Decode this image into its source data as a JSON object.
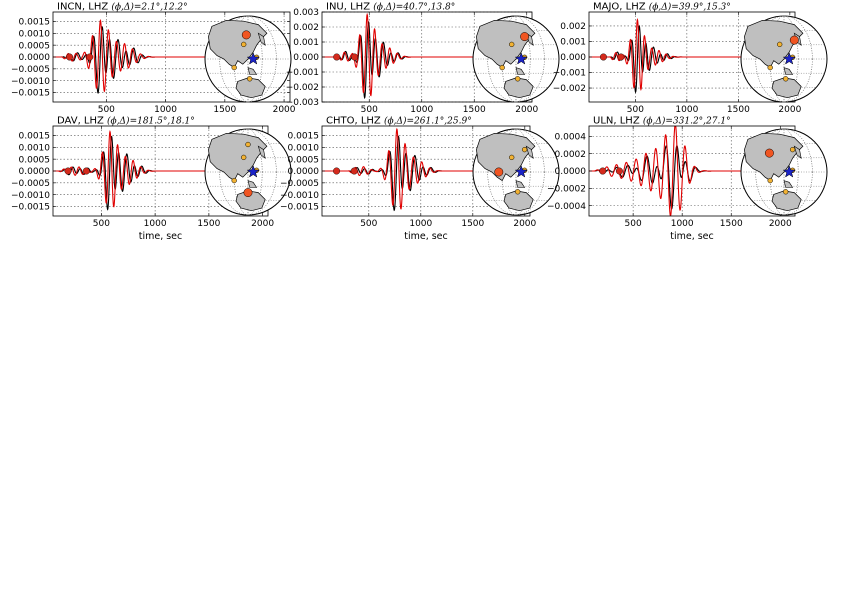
{
  "figure": {
    "xlabel": "time, sec",
    "colors": {
      "observed": "#000000",
      "synthetic": "#e00000",
      "marker": "#d42a1c",
      "station": "#f05522",
      "station_other": "#f2b233",
      "epicenter": "#1a22c8",
      "land": "#bfbfbf"
    }
  },
  "chart_data": [
    {
      "type": "line",
      "station": "INCN",
      "component": "LHZ",
      "param": "(ϕ,Δ)=2.1°,12.2°",
      "title": "INCN, LHZ (ϕ,Δ)=2.1°,12.2°",
      "xlim": [
        50,
        2050
      ],
      "xticks": [
        500,
        1000,
        1500,
        2000
      ],
      "show_xlabel": false,
      "ylim": [
        -0.0019,
        0.0019
      ],
      "yticks": [
        -0.0015,
        -0.001,
        -0.0005,
        0.0,
        0.0005,
        0.001,
        0.0015
      ],
      "ytick_labels": [
        "−0.0015",
        "−0.0010",
        "−0.0005",
        "0.0000",
        "0.0005",
        "0.0010",
        "0.0015"
      ],
      "markers_x": [
        190,
        360
      ],
      "wave": {
        "start": 120,
        "onset": 300,
        "peak_t": 450,
        "end": 900,
        "period": 68,
        "amp": 0.0014,
        "env_width": 95,
        "obs_shift": 12,
        "obs_scale": 0.8,
        "tail_t": 650,
        "tail_amp": 0.00055
      },
      "globe": {
        "station_xy": [
          0.48,
          0.22
        ],
        "others_xy": [
          [
            0.45,
            0.33
          ],
          [
            0.34,
            0.6
          ],
          [
            0.6,
            0.48
          ],
          [
            0.52,
            0.73
          ]
        ]
      }
    },
    {
      "type": "line",
      "station": "INU",
      "component": "LHZ",
      "param": "(ϕ,Δ)=40.7°,13.8°",
      "title": "INU, LHZ (ϕ,Δ)=40.7°,13.8°",
      "xlim": [
        50,
        2050
      ],
      "xticks": [
        500,
        1000,
        1500,
        2000
      ],
      "show_xlabel": false,
      "ylim": [
        -0.003,
        0.003
      ],
      "yticks": [
        -0.003,
        -0.002,
        -0.001,
        0.0,
        0.001,
        0.002,
        0.003
      ],
      "ytick_labels": [
        "−0.003",
        "−0.002",
        "−0.001",
        "0.000",
        "0.001",
        "0.002",
        "0.003"
      ],
      "markers_x": [
        190,
        360
      ],
      "wave": {
        "start": 200,
        "onset": 330,
        "peak_t": 480,
        "end": 900,
        "period": 72,
        "amp": 0.0026,
        "env_width": 90,
        "obs_shift": 10,
        "obs_scale": 0.8,
        "tail_t": 650,
        "tail_amp": 0.0007
      },
      "globe": {
        "station_xy": [
          0.6,
          0.24
        ],
        "others_xy": [
          [
            0.45,
            0.33
          ],
          [
            0.34,
            0.6
          ],
          [
            0.6,
            0.48
          ],
          [
            0.52,
            0.73
          ]
        ]
      }
    },
    {
      "type": "line",
      "station": "MAJO",
      "component": "LHZ",
      "param": "(ϕ,Δ)=39.9°,15.3°",
      "title": "MAJO, LHZ (ϕ,Δ)=39.9°,15.3°",
      "xlim": [
        50,
        2050
      ],
      "xticks": [
        500,
        1000,
        1500,
        2000
      ],
      "show_xlabel": false,
      "ylim": [
        -0.0029,
        0.0029
      ],
      "yticks": [
        -0.002,
        -0.001,
        0.0,
        0.001,
        0.002
      ],
      "ytick_labels": [
        "−0.002",
        "−0.001",
        "0.000",
        "0.001",
        "0.002"
      ],
      "markers_x": [
        190,
        360
      ],
      "wave": {
        "start": 250,
        "onset": 380,
        "peak_t": 520,
        "end": 950,
        "period": 70,
        "amp": 0.0023,
        "env_width": 80,
        "obs_shift": 15,
        "obs_scale": 0.8,
        "tail_t": 700,
        "tail_amp": 0.0005
      },
      "globe": {
        "station_xy": [
          0.62,
          0.28
        ],
        "others_xy": [
          [
            0.45,
            0.33
          ],
          [
            0.34,
            0.6
          ],
          [
            0.6,
            0.48
          ],
          [
            0.52,
            0.73
          ]
        ]
      }
    },
    {
      "type": "line",
      "station": "DAV",
      "component": "LHZ",
      "param": "(ϕ,Δ)=181.5°,18.1°",
      "title": "DAV, LHZ (ϕ,Δ)=181.5°,18.1°",
      "xlim": [
        50,
        2050
      ],
      "xticks": [
        500,
        1000,
        1500,
        2000
      ],
      "show_xlabel": true,
      "ylim": [
        -0.0019,
        0.0019
      ],
      "yticks": [
        -0.0015,
        -0.001,
        -0.0005,
        0.0,
        0.0005,
        0.001,
        0.0015
      ],
      "ytick_labels": [
        "−0.0015",
        "−0.0010",
        "−0.0005",
        "0.0000",
        "0.0005",
        "0.0010",
        "0.0015"
      ],
      "markers_x": [
        190,
        360
      ],
      "wave": {
        "start": 100,
        "onset": 420,
        "peak_t": 580,
        "end": 1000,
        "period": 72,
        "amp": 0.0015,
        "env_width": 85,
        "obs_shift": 12,
        "obs_scale": 0.85,
        "tail_t": 750,
        "tail_amp": 0.00055
      },
      "globe": {
        "station_xy": [
          0.5,
          0.74
        ],
        "others_xy": [
          [
            0.45,
            0.33
          ],
          [
            0.34,
            0.6
          ],
          [
            0.6,
            0.48
          ],
          [
            0.5,
            0.18
          ]
        ]
      }
    },
    {
      "type": "line",
      "station": "CHTO",
      "component": "LHZ",
      "param": "(ϕ,Δ)=261.1°,25.9°",
      "title": "CHTO, LHZ (ϕ,Δ)=261.1°,25.9°",
      "xlim": [
        50,
        2050
      ],
      "xticks": [
        500,
        1000,
        1500,
        2000
      ],
      "show_xlabel": true,
      "ylim": [
        -0.0019,
        0.0019
      ],
      "yticks": [
        -0.0015,
        -0.001,
        -0.0005,
        0.0,
        0.0005,
        0.001,
        0.0015
      ],
      "ytick_labels": [
        "−0.0015",
        "−0.0010",
        "−0.0005",
        "0.0000",
        "0.0005",
        "0.0010",
        "0.0015"
      ],
      "markers_x": [
        190,
        360
      ],
      "wave": {
        "start": 300,
        "onset": 550,
        "peak_t": 770,
        "end": 1200,
        "period": 80,
        "amp": 0.0016,
        "env_width": 95,
        "obs_shift": 12,
        "obs_scale": 0.8,
        "tail_t": 950,
        "tail_amp": 0.0005
      },
      "globe": {
        "station_xy": [
          0.3,
          0.5
        ],
        "others_xy": [
          [
            0.45,
            0.33
          ],
          [
            0.6,
            0.24
          ],
          [
            0.6,
            0.48
          ],
          [
            0.52,
            0.73
          ]
        ]
      }
    },
    {
      "type": "line",
      "station": "ULN",
      "component": "LHZ",
      "param": "(ϕ,Δ)=331.2°,27.1°",
      "title": "ULN, LHZ (ϕ,Δ)=331.2°,27.1°",
      "xlim": [
        50,
        2150
      ],
      "xticks": [
        500,
        1000,
        1500,
        2000
      ],
      "show_xlabel": true,
      "ylim": [
        -0.00052,
        0.00052
      ],
      "yticks": [
        -0.0004,
        -0.0002,
        0.0,
        0.0002,
        0.0004
      ],
      "ytick_labels": [
        "−0.0004",
        "−0.0002",
        "0.0000",
        "0.0002",
        "0.0004"
      ],
      "markers_x": [
        190,
        360
      ],
      "wave": {
        "start": 100,
        "onset": 550,
        "peak_t": 930,
        "end": 1450,
        "period": 100,
        "amp": 0.00046,
        "env_width": 130,
        "obs_shift": 10,
        "obs_scale": 0.5,
        "tail_t": 700,
        "tail_amp": 0.00022
      },
      "globe": {
        "station_xy": [
          0.33,
          0.28
        ],
        "others_xy": [
          [
            0.6,
            0.24
          ],
          [
            0.34,
            0.6
          ],
          [
            0.6,
            0.48
          ],
          [
            0.52,
            0.73
          ]
        ]
      }
    }
  ]
}
